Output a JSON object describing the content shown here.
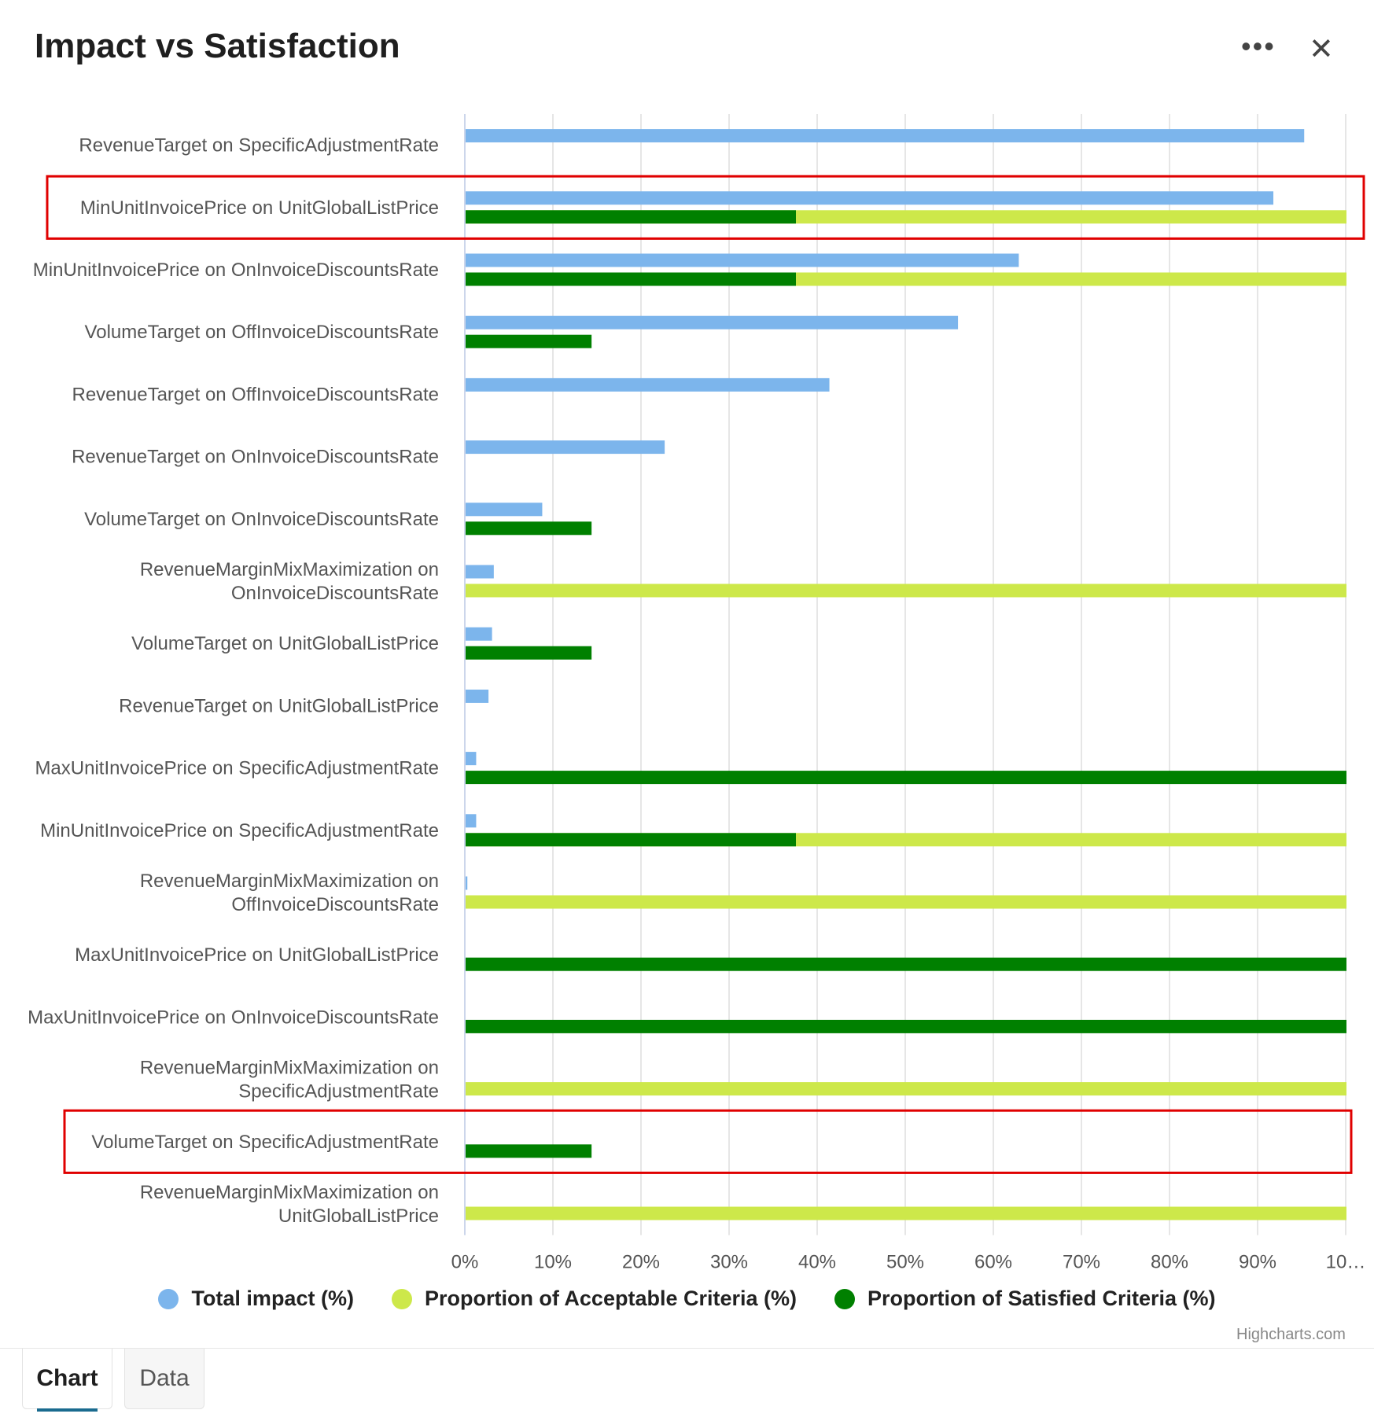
{
  "window": {
    "title": "Impact vs Satisfaction",
    "more_icon": "more-horizontal-icon",
    "close_icon": "close-icon"
  },
  "tabs": [
    {
      "label": "Chart",
      "active": true
    },
    {
      "label": "Data",
      "active": false
    }
  ],
  "credit": "Highcharts.com",
  "colors": {
    "total_impact": "#7cb5ec",
    "acceptable": "#cde84a",
    "satisfied": "#008000",
    "highlight": "#e00000",
    "grid": "#e6e6e6"
  },
  "chart_data": {
    "type": "bar",
    "title": "Impact vs Satisfaction",
    "xlabel": "",
    "ylabel": "",
    "xlim": [
      0,
      100
    ],
    "tick_labels": [
      "0%",
      "10%",
      "20%",
      "30%",
      "40%",
      "50%",
      "60%",
      "70%",
      "80%",
      "90%",
      "10…"
    ],
    "categories": [
      [
        "RevenueTarget on SpecificAdjustmentRate"
      ],
      [
        "MinUnitInvoicePrice on UnitGlobalListPrice"
      ],
      [
        "MinUnitInvoicePrice on OnInvoiceDiscountsRate"
      ],
      [
        "VolumeTarget on OffInvoiceDiscountsRate"
      ],
      [
        "RevenueTarget on OffInvoiceDiscountsRate"
      ],
      [
        "RevenueTarget on OnInvoiceDiscountsRate"
      ],
      [
        "VolumeTarget on OnInvoiceDiscountsRate"
      ],
      [
        "RevenueMarginMixMaximization on",
        "OnInvoiceDiscountsRate"
      ],
      [
        "VolumeTarget on UnitGlobalListPrice"
      ],
      [
        "RevenueTarget on UnitGlobalListPrice"
      ],
      [
        "MaxUnitInvoicePrice on SpecificAdjustmentRate"
      ],
      [
        "MinUnitInvoicePrice on SpecificAdjustmentRate"
      ],
      [
        "RevenueMarginMixMaximization on",
        "OffInvoiceDiscountsRate"
      ],
      [
        "MaxUnitInvoicePrice on UnitGlobalListPrice"
      ],
      [
        "MaxUnitInvoicePrice on OnInvoiceDiscountsRate"
      ],
      [
        "RevenueMarginMixMaximization on",
        "SpecificAdjustmentRate"
      ],
      [
        "VolumeTarget on SpecificAdjustmentRate"
      ],
      [
        "RevenueMarginMixMaximization on",
        "UnitGlobalListPrice"
      ]
    ],
    "series": [
      {
        "name": "Total impact (%)",
        "key": "total_impact",
        "values": [
          95.2,
          91.7,
          62.8,
          55.9,
          41.3,
          22.6,
          8.7,
          3.2,
          3.0,
          2.6,
          1.2,
          1.2,
          0.2,
          0,
          0,
          0,
          0,
          0
        ]
      },
      {
        "name": "Proportion of Acceptable Criteria (%)",
        "key": "acceptable",
        "values": [
          0,
          100,
          100,
          0,
          0,
          0,
          0,
          100,
          0,
          0,
          0,
          100,
          100,
          0,
          0,
          100,
          0,
          100
        ]
      },
      {
        "name": "Proportion of Satisfied Criteria (%)",
        "key": "satisfied",
        "values": [
          0,
          37.5,
          37.5,
          14.3,
          0,
          0,
          14.3,
          0,
          14.3,
          0,
          100,
          37.5,
          0,
          100,
          100,
          0,
          14.3,
          0
        ]
      }
    ],
    "highlighted_categories": [
      1,
      16
    ]
  }
}
